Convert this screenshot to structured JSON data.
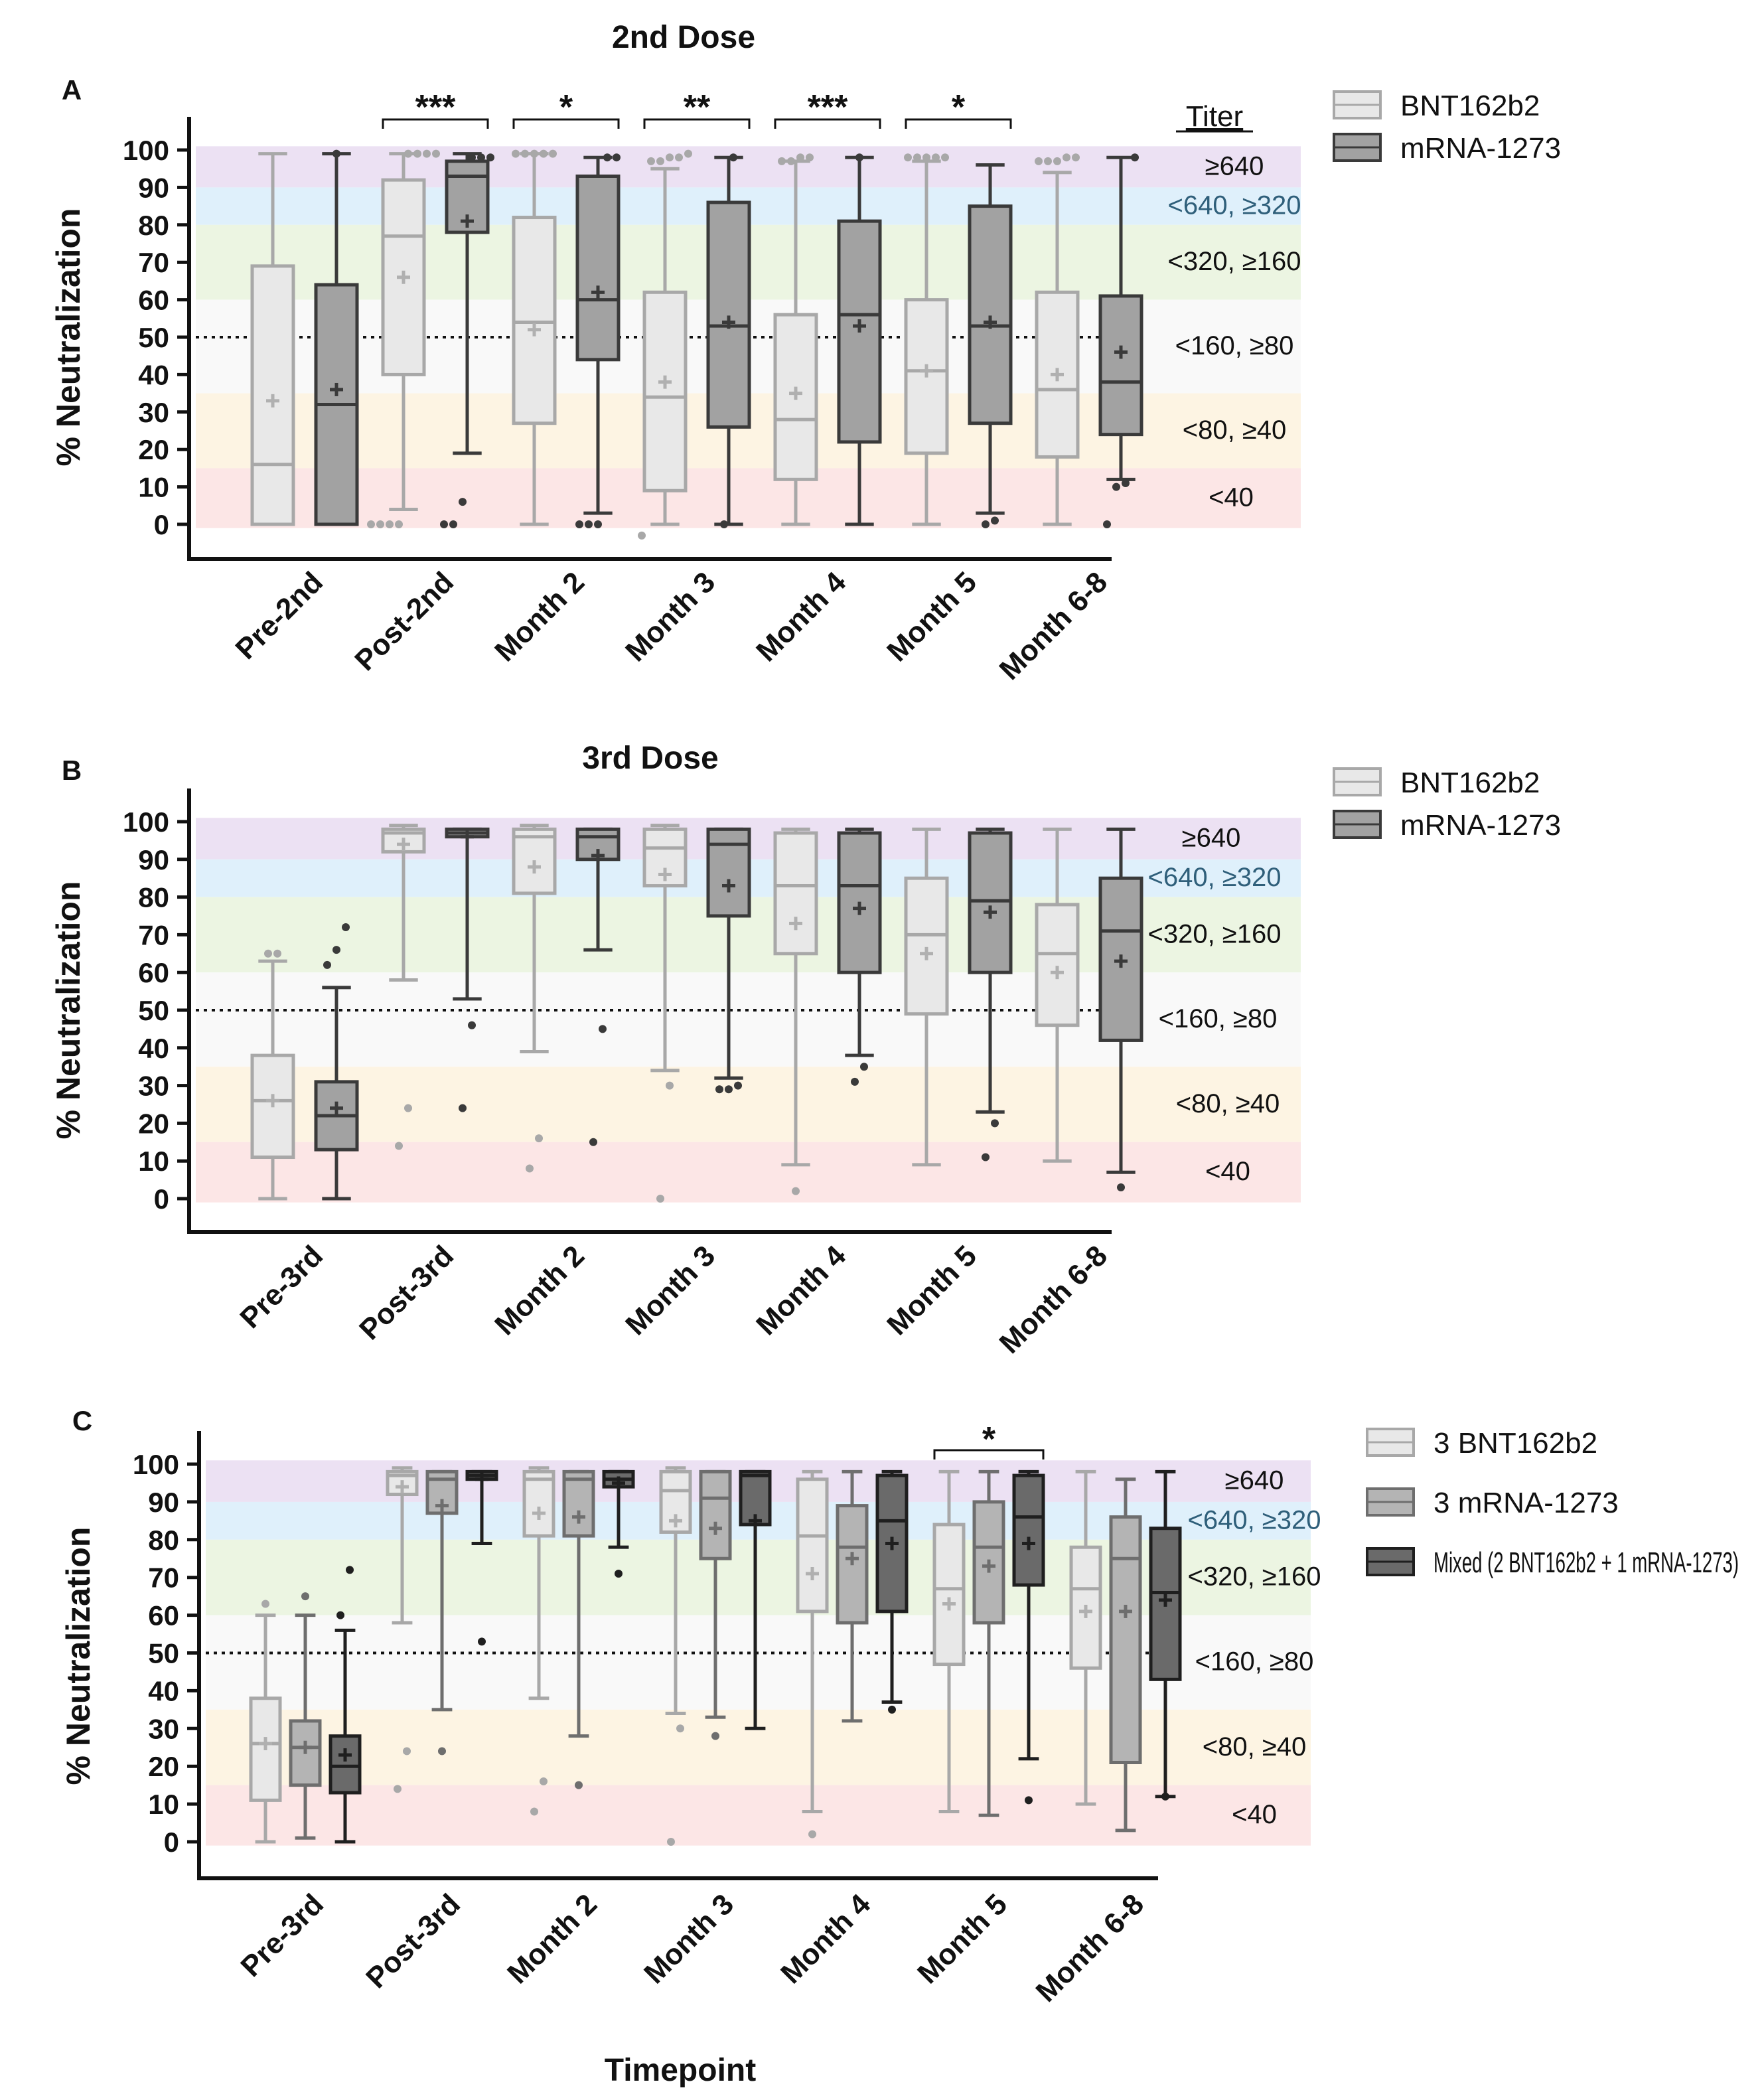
{
  "figure": {
    "y_axis_label": "% Neutralization",
    "x_axis_label": "Timepoint",
    "titer_header": "Titer"
  },
  "titer_bands": [
    {
      "label": "≥640",
      "from": 90,
      "to": 101,
      "color": "#ece1f3"
    },
    {
      "label": "<640, ≥320",
      "from": 80,
      "to": 90,
      "color": "#dff0fb",
      "label_color": "#2f5f7a"
    },
    {
      "label": "<320, ≥160",
      "from": 60,
      "to": 80,
      "color": "#ecf5e2"
    },
    {
      "label": "<160, ≥80",
      "from": 35,
      "to": 60,
      "color": "#f9f9f9"
    },
    {
      "label": "<80, ≥40",
      "from": 15,
      "to": 35,
      "color": "#fdf4e3"
    },
    {
      "label": "<40",
      "from": -1,
      "to": 15,
      "color": "#fce6e6"
    }
  ],
  "chart_data": [
    {
      "panel": "A",
      "type": "box",
      "title": "2nd Dose",
      "ylabel": "% Neutralization",
      "ylim": [
        0,
        100
      ],
      "yticks": [
        0,
        10,
        20,
        30,
        40,
        50,
        60,
        70,
        80,
        90,
        100
      ],
      "reference_line": 50,
      "categories": [
        "Pre-2nd",
        "Post-2nd",
        "Month 2",
        "Month 3",
        "Month 4",
        "Month 5",
        "Month 6-8"
      ],
      "series": [
        {
          "name": "BNT162b2",
          "color": "#e8e8e8",
          "stroke": "#a8a8a8",
          "mean_color": "#b0b0b0",
          "boxes": [
            {
              "whisker_low": 0,
              "q1": 0,
              "median": 16,
              "q3": 69,
              "whisker_high": 99,
              "mean": 33
            },
            {
              "whisker_low": 4,
              "q1": 40,
              "median": 77,
              "q3": 92,
              "whisker_high": 99,
              "mean": 66
            },
            {
              "whisker_low": 0,
              "q1": 27,
              "median": 54,
              "q3": 82,
              "whisker_high": 99,
              "mean": 52
            },
            {
              "whisker_low": 0,
              "q1": 9,
              "median": 34,
              "q3": 62,
              "whisker_high": 95,
              "mean": 38
            },
            {
              "whisker_low": 0,
              "q1": 12,
              "median": 28,
              "q3": 56,
              "whisker_high": 97,
              "mean": 35
            },
            {
              "whisker_low": 0,
              "q1": 19,
              "median": 41,
              "q3": 60,
              "whisker_high": 97,
              "mean": 41
            },
            {
              "whisker_low": 0,
              "q1": 18,
              "median": 36,
              "q3": 62,
              "whisker_high": 94,
              "mean": 40
            }
          ],
          "outliers": [
            [],
            [
              0,
              0,
              0,
              0,
              99,
              99,
              99,
              99
            ],
            [
              99,
              99,
              99,
              99,
              99
            ],
            [
              -3,
              97,
              97,
              98,
              98,
              99
            ],
            [
              97,
              97,
              98,
              98
            ],
            [
              98,
              98,
              98,
              98,
              98
            ],
            [
              97,
              97,
              97,
              98,
              98
            ]
          ]
        },
        {
          "name": "mRNA-1273",
          "color": "#a2a2a2",
          "stroke": "#3a3a3a",
          "mean_color": "#3a3a3a",
          "boxes": [
            {
              "whisker_low": 0,
              "q1": 0,
              "median": 32,
              "q3": 64,
              "whisker_high": 99,
              "mean": 36
            },
            {
              "whisker_low": 19,
              "q1": 78,
              "median": 93,
              "q3": 97,
              "whisker_high": 99,
              "mean": 81
            },
            {
              "whisker_low": 3,
              "q1": 44,
              "median": 60,
              "q3": 93,
              "whisker_high": 98,
              "mean": 62
            },
            {
              "whisker_low": 0,
              "q1": 26,
              "median": 53,
              "q3": 86,
              "whisker_high": 98,
              "mean": 54
            },
            {
              "whisker_low": 0,
              "q1": 22,
              "median": 56,
              "q3": 81,
              "whisker_high": 98,
              "mean": 53
            },
            {
              "whisker_low": 3,
              "q1": 27,
              "median": 53,
              "q3": 85,
              "whisker_high": 96,
              "mean": 54
            },
            {
              "whisker_low": 12,
              "q1": 24,
              "median": 38,
              "q3": 61,
              "whisker_high": 98,
              "mean": 46
            }
          ],
          "outliers": [
            [
              99
            ],
            [
              0,
              0,
              6,
              98,
              98,
              98
            ],
            [
              0,
              0,
              0,
              98,
              98
            ],
            [
              0,
              98
            ],
            [
              98
            ],
            [
              0,
              1
            ],
            [
              0,
              10,
              11,
              98
            ]
          ]
        }
      ],
      "significance": [
        {
          "category": "Post-2nd",
          "label": "***"
        },
        {
          "category": "Month 2",
          "label": "*"
        },
        {
          "category": "Month 3",
          "label": "**"
        },
        {
          "category": "Month 4",
          "label": "***"
        },
        {
          "category": "Month 5",
          "label": "*"
        }
      ],
      "legend": [
        "BNT162b2",
        "mRNA-1273"
      ],
      "legend_position": "top-right"
    },
    {
      "panel": "B",
      "type": "box",
      "title": "3rd Dose",
      "ylabel": "% Neutralization",
      "ylim": [
        0,
        100
      ],
      "yticks": [
        0,
        10,
        20,
        30,
        40,
        50,
        60,
        70,
        80,
        90,
        100
      ],
      "reference_line": 50,
      "categories": [
        "Pre-3rd",
        "Post-3rd",
        "Month 2",
        "Month 3",
        "Month 4",
        "Month 5",
        "Month 6-8"
      ],
      "series": [
        {
          "name": "BNT162b2",
          "color": "#e8e8e8",
          "stroke": "#a8a8a8",
          "mean_color": "#b0b0b0",
          "boxes": [
            {
              "whisker_low": 0,
              "q1": 11,
              "median": 26,
              "q3": 38,
              "whisker_high": 63,
              "mean": 26
            },
            {
              "whisker_low": 58,
              "q1": 92,
              "median": 97,
              "q3": 98,
              "whisker_high": 99,
              "mean": 94
            },
            {
              "whisker_low": 39,
              "q1": 81,
              "median": 96,
              "q3": 98,
              "whisker_high": 99,
              "mean": 88
            },
            {
              "whisker_low": 34,
              "q1": 83,
              "median": 93,
              "q3": 98,
              "whisker_high": 99,
              "mean": 86
            },
            {
              "whisker_low": 9,
              "q1": 65,
              "median": 83,
              "q3": 97,
              "whisker_high": 98,
              "mean": 73
            },
            {
              "whisker_low": 9,
              "q1": 49,
              "median": 70,
              "q3": 85,
              "whisker_high": 98,
              "mean": 65
            },
            {
              "whisker_low": 10,
              "q1": 46,
              "median": 65,
              "q3": 78,
              "whisker_high": 98,
              "mean": 60
            }
          ],
          "outliers": [
            [
              65,
              65
            ],
            [
              14,
              24
            ],
            [
              8,
              16
            ],
            [
              0,
              30
            ],
            [
              2
            ],
            [],
            []
          ]
        },
        {
          "name": "mRNA-1273",
          "color": "#a2a2a2",
          "stroke": "#3a3a3a",
          "mean_color": "#3a3a3a",
          "boxes": [
            {
              "whisker_low": 0,
              "q1": 13,
              "median": 22,
              "q3": 31,
              "whisker_high": 56,
              "mean": 24
            },
            {
              "whisker_low": 53,
              "q1": 96,
              "median": 97,
              "q3": 98,
              "whisker_high": 98,
              "mean": 96
            },
            {
              "whisker_low": 66,
              "q1": 90,
              "median": 96,
              "q3": 98,
              "whisker_high": 98,
              "mean": 91
            },
            {
              "whisker_low": 32,
              "q1": 75,
              "median": 94,
              "q3": 98,
              "whisker_high": 98,
              "mean": 83
            },
            {
              "whisker_low": 38,
              "q1": 60,
              "median": 83,
              "q3": 97,
              "whisker_high": 98,
              "mean": 77
            },
            {
              "whisker_low": 23,
              "q1": 60,
              "median": 79,
              "q3": 97,
              "whisker_high": 98,
              "mean": 76
            },
            {
              "whisker_low": 7,
              "q1": 42,
              "median": 71,
              "q3": 85,
              "whisker_high": 98,
              "mean": 63
            }
          ],
          "outliers": [
            [
              62,
              66,
              72
            ],
            [
              24,
              46
            ],
            [
              15,
              45
            ],
            [
              29,
              29,
              30
            ],
            [
              31,
              35
            ],
            [
              11,
              20
            ],
            [
              3
            ]
          ]
        }
      ],
      "significance": [],
      "legend": [
        "BNT162b2",
        "mRNA-1273"
      ],
      "legend_position": "top-right"
    },
    {
      "panel": "C",
      "type": "box",
      "title": "",
      "xlabel": "Timepoint",
      "ylabel": "% Neutralization",
      "ylim": [
        0,
        100
      ],
      "yticks": [
        0,
        10,
        20,
        30,
        40,
        50,
        60,
        70,
        80,
        90,
        100
      ],
      "reference_line": 50,
      "categories": [
        "Pre-3rd",
        "Post-3rd",
        "Month 2",
        "Month 3",
        "Month 4",
        "Month 5",
        "Month 6-8"
      ],
      "series": [
        {
          "name": "3 BNT162b2",
          "color": "#e8e8e8",
          "stroke": "#a8a8a8",
          "mean_color": "#b0b0b0",
          "boxes": [
            {
              "whisker_low": 0,
              "q1": 11,
              "median": 26,
              "q3": 38,
              "whisker_high": 60,
              "mean": 26
            },
            {
              "whisker_low": 58,
              "q1": 92,
              "median": 97,
              "q3": 98,
              "whisker_high": 99,
              "mean": 94
            },
            {
              "whisker_low": 38,
              "q1": 81,
              "median": 96,
              "q3": 98,
              "whisker_high": 99,
              "mean": 87
            },
            {
              "whisker_low": 34,
              "q1": 82,
              "median": 93,
              "q3": 98,
              "whisker_high": 99,
              "mean": 85
            },
            {
              "whisker_low": 8,
              "q1": 61,
              "median": 81,
              "q3": 96,
              "whisker_high": 98,
              "mean": 71
            },
            {
              "whisker_low": 8,
              "q1": 47,
              "median": 67,
              "q3": 84,
              "whisker_high": 98,
              "mean": 63
            },
            {
              "whisker_low": 10,
              "q1": 46,
              "median": 67,
              "q3": 78,
              "whisker_high": 98,
              "mean": 61
            }
          ],
          "outliers": [
            [
              63
            ],
            [
              14,
              24
            ],
            [
              8,
              16
            ],
            [
              0,
              30
            ],
            [
              2
            ],
            [],
            []
          ]
        },
        {
          "name": "3 mRNA-1273",
          "color": "#b4b4b4",
          "stroke": "#6e6e6e",
          "mean_color": "#6e6e6e",
          "boxes": [
            {
              "whisker_low": 1,
              "q1": 15,
              "median": 25,
              "q3": 32,
              "whisker_high": 60,
              "mean": 25
            },
            {
              "whisker_low": 35,
              "q1": 87,
              "median": 96,
              "q3": 98,
              "whisker_high": 98,
              "mean": 89
            },
            {
              "whisker_low": 28,
              "q1": 81,
              "median": 96,
              "q3": 98,
              "whisker_high": 98,
              "mean": 86
            },
            {
              "whisker_low": 33,
              "q1": 75,
              "median": 91,
              "q3": 98,
              "whisker_high": 98,
              "mean": 83
            },
            {
              "whisker_low": 32,
              "q1": 58,
              "median": 78,
              "q3": 89,
              "whisker_high": 98,
              "mean": 75
            },
            {
              "whisker_low": 7,
              "q1": 58,
              "median": 78,
              "q3": 90,
              "whisker_high": 98,
              "mean": 73
            },
            {
              "whisker_low": 3,
              "q1": 21,
              "median": 75,
              "q3": 86,
              "whisker_high": 96,
              "mean": 61
            }
          ],
          "outliers": [
            [
              65
            ],
            [
              24
            ],
            [
              15
            ],
            [
              28
            ],
            [],
            [],
            []
          ]
        },
        {
          "name": "Mixed (2 BNT162b2 + 1 mRNA-1273)",
          "color": "#6a6a6a",
          "stroke": "#1f1f1f",
          "mean_color": "#1f1f1f",
          "boxes": [
            {
              "whisker_low": 0,
              "q1": 13,
              "median": 20,
              "q3": 28,
              "whisker_high": 56,
              "mean": 23
            },
            {
              "whisker_low": 79,
              "q1": 96,
              "median": 97,
              "q3": 98,
              "whisker_high": 98,
              "mean": 96
            },
            {
              "whisker_low": 78,
              "q1": 94,
              "median": 96,
              "q3": 98,
              "whisker_high": 98,
              "mean": 95
            },
            {
              "whisker_low": 30,
              "q1": 84,
              "median": 97,
              "q3": 98,
              "whisker_high": 98,
              "mean": 85
            },
            {
              "whisker_low": 37,
              "q1": 61,
              "median": 85,
              "q3": 97,
              "whisker_high": 98,
              "mean": 79
            },
            {
              "whisker_low": 22,
              "q1": 68,
              "median": 86,
              "q3": 97,
              "whisker_high": 98,
              "mean": 79
            },
            {
              "whisker_low": 12,
              "q1": 43,
              "median": 66,
              "q3": 83,
              "whisker_high": 98,
              "mean": 64
            }
          ],
          "outliers": [
            [
              60,
              72
            ],
            [
              53
            ],
            [
              71
            ],
            [],
            [
              35
            ],
            [
              11
            ],
            [
              12
            ]
          ]
        }
      ],
      "significance": [
        {
          "category": "Month 5",
          "label": "*"
        }
      ],
      "legend": [
        "3 BNT162b2",
        "3 mRNA-1273",
        "Mixed (2 BNT162b2 + 1 mRNA-1273)"
      ],
      "legend_position": "top-right"
    }
  ]
}
